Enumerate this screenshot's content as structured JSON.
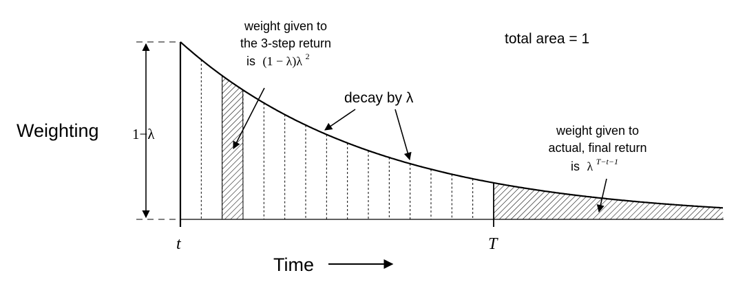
{
  "chart_data": {
    "type": "area",
    "title": "",
    "xlabel": "Time",
    "ylabel": "Weighting",
    "y_axis_label": "1−λ",
    "x_start_label": "t",
    "x_terminal_label": "T",
    "decay_factor": 0.9,
    "num_steps_before_T": 15,
    "highlight_step": 3,
    "x_end_steps": 26,
    "annotations": {
      "total_area": "total area = 1",
      "decay": "decay by λ",
      "step3_line1": "weight given to",
      "step3_line2": "the 3-step return",
      "step3_line3_prefix": "is",
      "step3_formula": "(1 − λ)λ",
      "step3_formula_exp": "2",
      "final_line1": "weight given to",
      "final_line2": "actual, final return",
      "final_line3_prefix": "is",
      "final_formula": "λ",
      "final_formula_exp": "T−t−1"
    }
  }
}
